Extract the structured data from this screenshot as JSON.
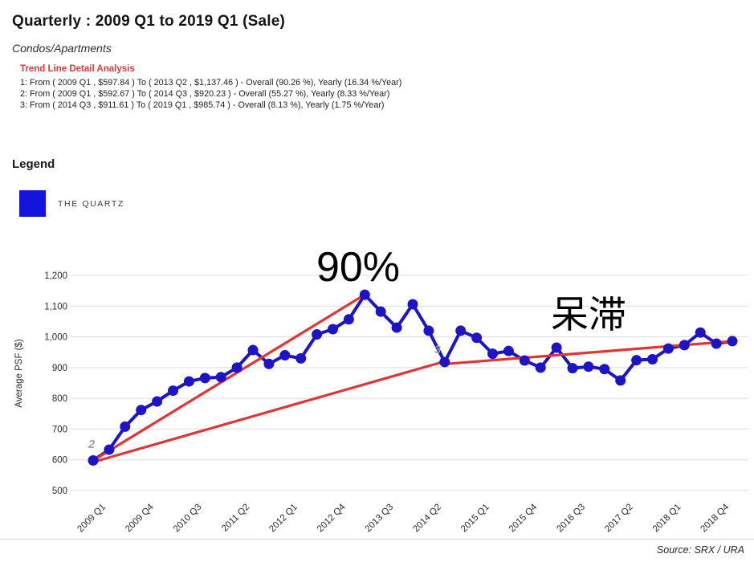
{
  "header": {
    "title": "Quarterly : 2009 Q1 to 2019 Q1 (Sale)",
    "subtitle": "Condos/Apartments",
    "trend_analysis": {
      "heading": "Trend Line Detail Analysis",
      "lines": [
        "1: From ( 2009 Q1 , $597.84 ) To ( 2013 Q2 , $1,137.46 ) - Overall (90.26 %), Yearly (16.34 %/Year)",
        "2: From ( 2009 Q1 , $592.67 ) To ( 2014 Q3 , $920.23 ) - Overall (55.27 %), Yearly (8.33 %/Year)",
        "3: From ( 2014 Q3 , $911.61 ) To ( 2019 Q1 , $985.74 ) - Overall (8.13 %), Yearly (1.75 %/Year)"
      ]
    }
  },
  "legend": {
    "heading": "Legend",
    "series_label": "THE QUARTZ",
    "swatch_color": "#1414dd"
  },
  "annotations": {
    "gain_label": "90%",
    "stagnant_label": "呆滞",
    "trend2_marker": "2",
    "trend3_marker": "3"
  },
  "footer": {
    "source": "Source: SRX / URA"
  },
  "chart_data": {
    "type": "line",
    "title": "Quarterly : 2009 Q1 to 2019 Q1 (Sale)",
    "xlabel": "",
    "ylabel": "Average PSF ($)",
    "ylim": [
      500,
      1200
    ],
    "y_ticks": [
      500,
      600,
      700,
      800,
      900,
      1000,
      1100,
      1200
    ],
    "grid": true,
    "legend_position": "top-left",
    "x": [
      "2009 Q1",
      "2009 Q2",
      "2009 Q3",
      "2009 Q4",
      "2010 Q1",
      "2010 Q2",
      "2010 Q3",
      "2010 Q4",
      "2011 Q1",
      "2011 Q2",
      "2011 Q3",
      "2011 Q4",
      "2012 Q1",
      "2012 Q2",
      "2012 Q3",
      "2012 Q4",
      "2013 Q1",
      "2013 Q2",
      "2013 Q3",
      "2013 Q4",
      "2014 Q1",
      "2014 Q2",
      "2014 Q3",
      "2014 Q4",
      "2015 Q1",
      "2015 Q2",
      "2015 Q3",
      "2015 Q4",
      "2016 Q1",
      "2016 Q2",
      "2016 Q3",
      "2016 Q4",
      "2017 Q1",
      "2017 Q2",
      "2017 Q3",
      "2017 Q4",
      "2018 Q1",
      "2018 Q2",
      "2018 Q3",
      "2018 Q4",
      "2019 Q1"
    ],
    "x_tick_labels": [
      "2009 Q1",
      "2009 Q4",
      "2010 Q3",
      "2011 Q2",
      "2012 Q1",
      "2012 Q4",
      "2013 Q3",
      "2014 Q2",
      "2015 Q1",
      "2015 Q4",
      "2016 Q3",
      "2017 Q2",
      "2018 Q1",
      "2018 Q4"
    ],
    "x_tick_step": 3,
    "series": [
      {
        "name": "THE QUARTZ",
        "values": [
          598,
          633,
          708,
          762,
          790,
          825,
          855,
          866,
          869,
          900,
          957,
          912,
          940,
          930,
          1008,
          1025,
          1057,
          1137,
          1082,
          1030,
          1106,
          1020,
          918,
          1020,
          997,
          945,
          954,
          923,
          900,
          965,
          898,
          903,
          895,
          858,
          924,
          927,
          962,
          973,
          1014,
          978,
          986
        ]
      }
    ],
    "trend_lines": [
      {
        "label": "1",
        "from_x": "2009 Q1",
        "from_value": 597.84,
        "to_x": "2013 Q2",
        "to_value": 1137.46
      },
      {
        "label": "2",
        "from_x": "2009 Q1",
        "from_value": 592.67,
        "to_x": "2014 Q3",
        "to_value": 920.23
      },
      {
        "label": "3",
        "from_x": "2014 Q3",
        "from_value": 911.61,
        "to_x": "2019 Q1",
        "to_value": 985.74
      }
    ],
    "colors": {
      "series": "#1c14c6",
      "trend": "#e13434",
      "grid": "#dcdcdc",
      "tick_text": "#2b2b2b",
      "annotation_text": "#000000",
      "marker_text": "#9aa0a8"
    }
  }
}
